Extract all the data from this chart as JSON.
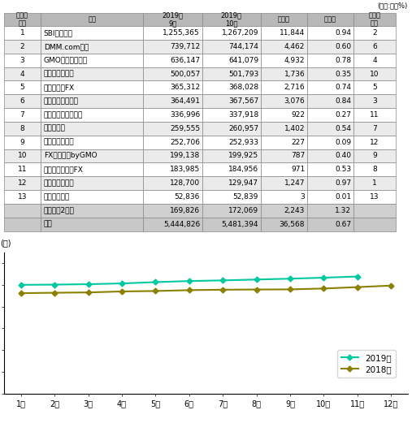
{
  "unit_label": "(単位:件、%)",
  "table_headers": [
    "口座数\n順位",
    "社名",
    "2019年\n9月",
    "2019年\n10月",
    "増加数",
    "前月比",
    "増加率\n順位"
  ],
  "table_rows": [
    [
      "1",
      "SBIグループ",
      "1,255,365",
      "1,267,209",
      "11,844",
      "0.94",
      "2"
    ],
    [
      "2",
      "DMM.com証券",
      "739,712",
      "744,174",
      "4,462",
      "0.60",
      "6"
    ],
    [
      "3",
      "GMOクリック証券",
      "636,147",
      "641,079",
      "4,932",
      "0.78",
      "4"
    ],
    [
      "4",
      "外為どっとコム",
      "500,057",
      "501,793",
      "1,736",
      "0.35",
      "10"
    ],
    [
      "5",
      "ワイジェイFX",
      "365,312",
      "368,028",
      "2,716",
      "0.74",
      "5"
    ],
    [
      "6",
      "トレイダーズ証券",
      "364,491",
      "367,567",
      "3,076",
      "0.84",
      "3"
    ],
    [
      "7",
      "マネーパートナーズ",
      "336,996",
      "337,918",
      "922",
      "0.27",
      "11"
    ],
    [
      "8",
      "ヒロセ通商",
      "259,555",
      "260,957",
      "1,402",
      "0.54",
      "7"
    ],
    [
      "9",
      "マネックス証券",
      "252,706",
      "252,933",
      "227",
      "0.09",
      "12"
    ],
    [
      "10",
      "FXプライムbyGMO",
      "199,138",
      "199,925",
      "787",
      "0.40",
      "9"
    ],
    [
      "11",
      "セントラル短資FX",
      "183,985",
      "184,956",
      "971",
      "0.53",
      "8"
    ],
    [
      "12",
      "マネースクエア",
      "128,700",
      "129,947",
      "1,247",
      "0.97",
      "1"
    ],
    [
      "13",
      "上田ハーロー",
      "52,836",
      "52,839",
      "3",
      "0.01",
      "13"
    ],
    [
      "",
      "その他（2社）",
      "169,826",
      "172,069",
      "2,243",
      "1.32",
      ""
    ],
    [
      "",
      "合計",
      "5,444,826",
      "5,481,394",
      "36,568",
      "0.67",
      ""
    ]
  ],
  "header_bg": "#b8b8b8",
  "odd_row_bg": "#ffffff",
  "even_row_bg": "#ebebeb",
  "subtotal_bg": "#d0d0d0",
  "total_bg": "#c8c8c8",
  "col_widths_ratio": [
    0.09,
    0.255,
    0.145,
    0.145,
    0.115,
    0.115,
    0.105
  ],
  "chart_ylabel": "(件)",
  "chart_months": [
    "1月",
    "2月",
    "3月",
    "4月",
    "5月",
    "6月",
    "7月",
    "8月",
    "9月",
    "10月",
    "11月",
    "12月"
  ],
  "series_2019": [
    5010000,
    5020000,
    5040000,
    5075000,
    5135000,
    5185000,
    5215000,
    5255000,
    5295000,
    5340000,
    5395000,
    null
  ],
  "series_2018": [
    4625000,
    4645000,
    4660000,
    4705000,
    4725000,
    4765000,
    4785000,
    4795000,
    4800000,
    4840000,
    4905000,
    4975000
  ],
  "color_2019": "#00c8a0",
  "color_2018": "#8b8000",
  "legend_2019": "2019年",
  "legend_2018": "2018年",
  "yticks": [
    0,
    1000000,
    2000000,
    3000000,
    4000000,
    5000000,
    6000000
  ],
  "ylim": [
    0,
    6500000
  ]
}
